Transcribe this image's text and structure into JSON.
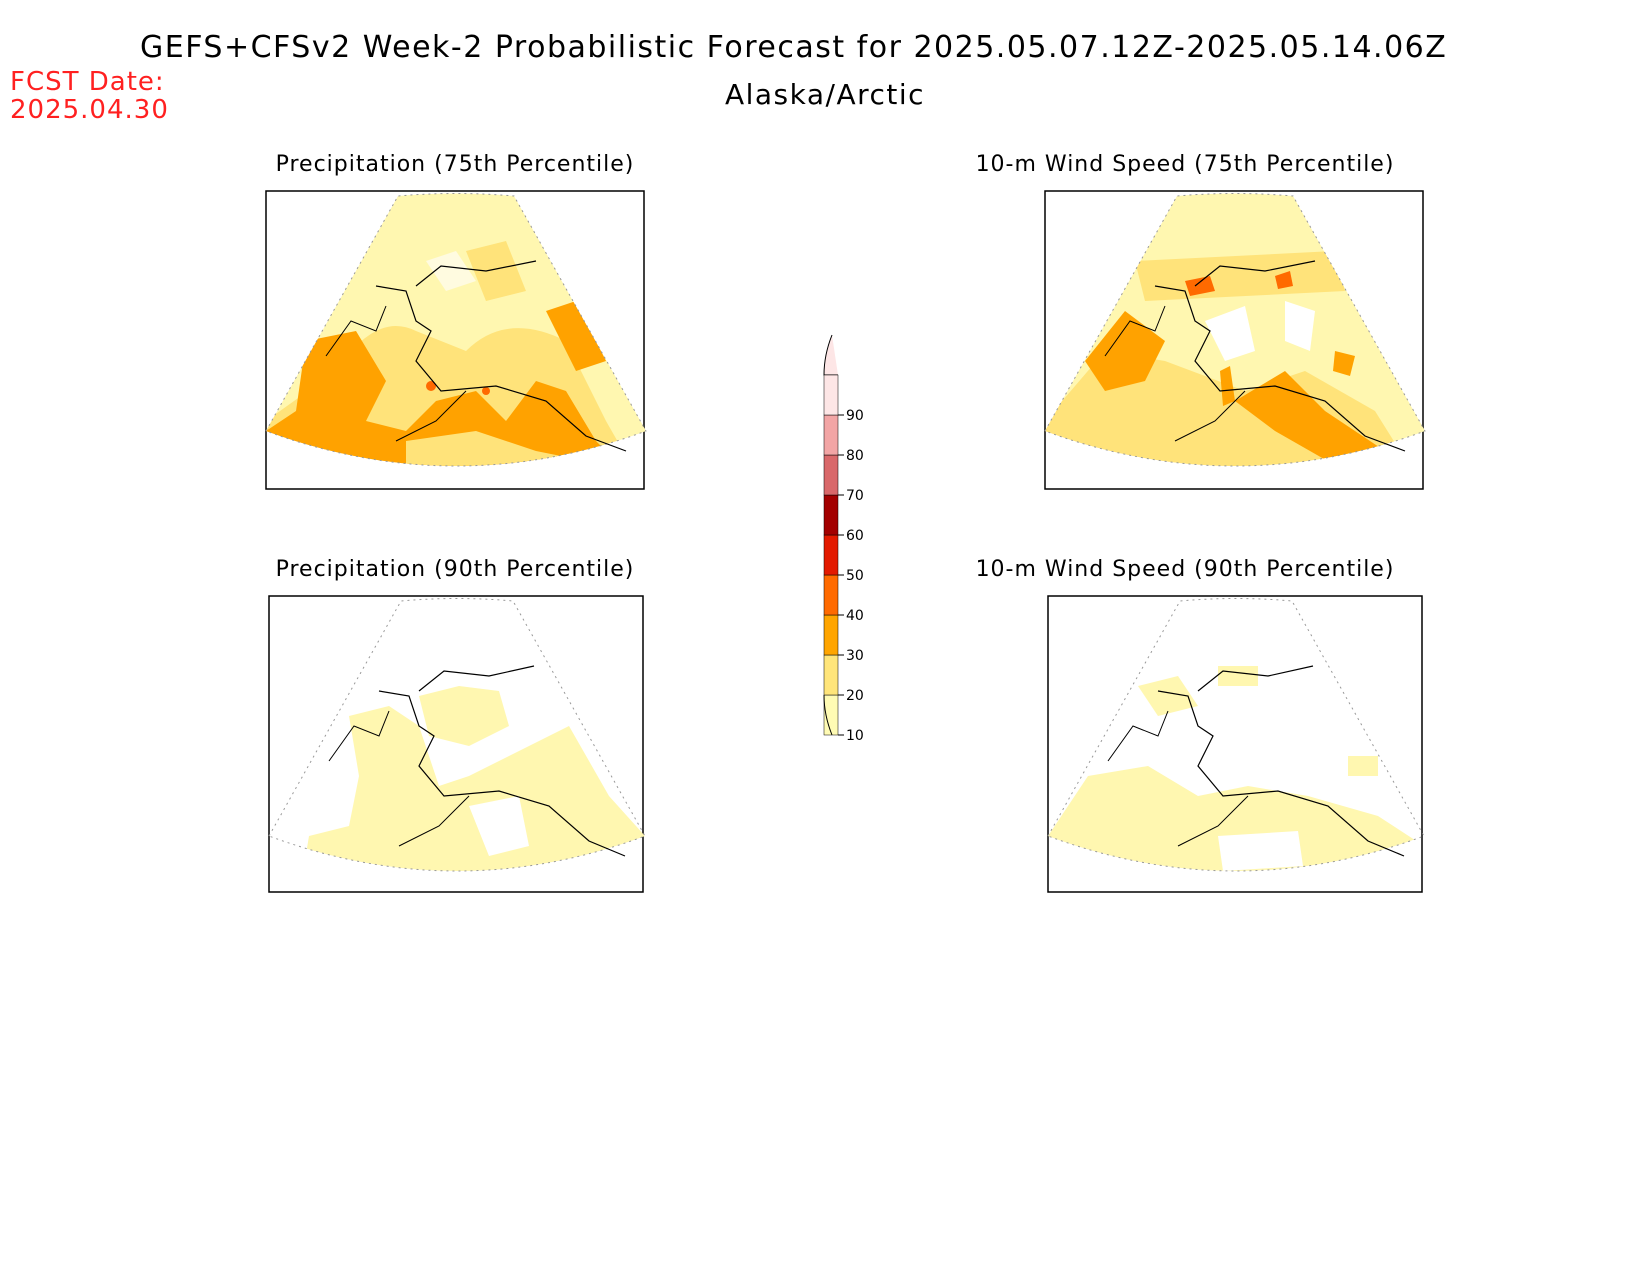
{
  "header": {
    "title": "GEFS+CFSv2 Week-2 Probabilistic Forecast for 2025.05.07.12Z-2025.05.14.06Z",
    "subtitle": "Alaska/Arctic",
    "fcst_label": "FCST Date:",
    "fcst_date": "2025.04.30"
  },
  "panels": [
    {
      "title": "Precipitation (75th Percentile)",
      "variable": "precipitation",
      "percentile": "75th"
    },
    {
      "title": "10-m Wind Speed (75th Percentile)",
      "variable": "wind",
      "percentile": "75th"
    },
    {
      "title": "Precipitation (90th Percentile)",
      "variable": "precipitation",
      "percentile": "90th"
    },
    {
      "title": "10-m Wind Speed (90th Percentile)",
      "variable": "wind",
      "percentile": "90th"
    }
  ],
  "colorbar": {
    "levels": [
      "10",
      "20",
      "30",
      "40",
      "50",
      "60",
      "70",
      "80",
      "90"
    ],
    "colors": [
      "#fffbb4",
      "#ffe57a",
      "#ffa500",
      "#ff6a00",
      "#e31a00",
      "#a30000",
      "#d9686a",
      "#f2a5a5",
      "#fde6e6"
    ]
  }
}
